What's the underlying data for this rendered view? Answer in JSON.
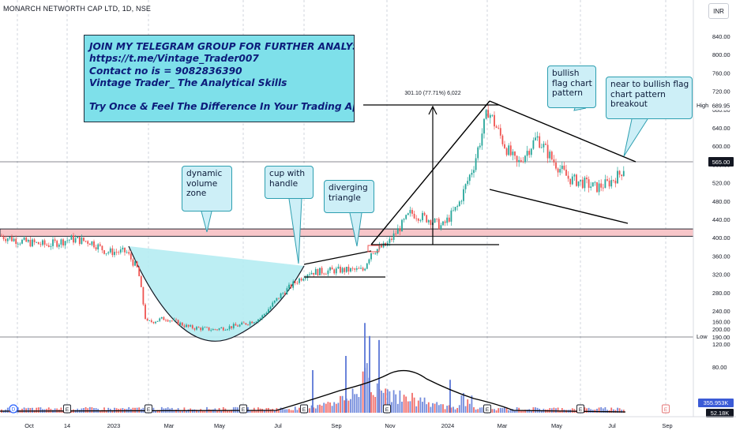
{
  "header": {
    "symbol": "MONARCH NETWORTH CAP LTD, 1D, NSE",
    "currency": "INR"
  },
  "promo": {
    "lines": [
      "JOIN MY TELEGRAM  GROUP FOR FURTHER ANALYSIS:-",
      "https://t.me/Vintage_Trader007",
      "Contact no is = 9082836390",
      "Vintage Trader_ The Analytical Skills",
      "",
      "Try Once & Feel The Difference In Your Trading Approach"
    ]
  },
  "annotations": {
    "dynamic_volume_zone": [
      "dynamic",
      "volume",
      "zone"
    ],
    "cup_with_handle": [
      "cup with",
      "handle"
    ],
    "diverging_triangle": [
      "diverging",
      "triangle"
    ],
    "bullish_flag": [
      "bullish",
      "flag chart",
      "pattern"
    ],
    "near_breakout": [
      "near to bullish flag",
      "chart pattern",
      "breakout"
    ],
    "measure_label": "301.10 (77.71%) 6,022"
  },
  "chart_data": {
    "type": "candlestick",
    "x_axis_labels": [
      "Oct",
      "14",
      "2023",
      "Mar",
      "May",
      "Jul",
      "Sep",
      "Nov",
      "2024",
      "Mar",
      "May",
      "Jul",
      "Sep"
    ],
    "price_axis_ticks": [
      840.0,
      800.0,
      760.0,
      720.0,
      680.0,
      640.0,
      600.0,
      560.0,
      520.0,
      480.0,
      440.0,
      400.0,
      360.0,
      320.0,
      280.0,
      240.0,
      200.0
    ],
    "volume_axis_ticks": [
      "160.00",
      "120.00",
      "80.00"
    ],
    "high_label": "High",
    "high_value": "689.95",
    "low_label": "Low",
    "low_value": "190.00",
    "last_price": "565.00",
    "volume_value_1": "355.953K",
    "volume_value_2": "52.18K",
    "price_path": [
      [
        "Oct 2022",
        405
      ],
      [
        "Nov 2022",
        385
      ],
      [
        "Dec 2022",
        395
      ],
      [
        "Jan 2023",
        375
      ],
      [
        "Feb 2023",
        345
      ],
      [
        "Mar 2023",
        215
      ],
      [
        "Apr 2023",
        205
      ],
      [
        "May 2023",
        200
      ],
      [
        "Jun 2023",
        225
      ],
      [
        "Jul 2023",
        300
      ],
      [
        "Aug 2023",
        325
      ],
      [
        "Sep 2023",
        330
      ],
      [
        "Oct 2023",
        380
      ],
      [
        "Nov 2023",
        470
      ],
      [
        "Dec 2023",
        440
      ],
      [
        "Jan 2024",
        560
      ],
      [
        "Feb 2024",
        680
      ],
      [
        "Mar 2024",
        610
      ],
      [
        "Apr 2024",
        560
      ],
      [
        "May 2024",
        520
      ],
      [
        "Jun 2024",
        500
      ],
      [
        "Jul 2024",
        565
      ]
    ],
    "resistance_zone": [
      404,
      420
    ],
    "measured_move": {
      "from": 388.85,
      "to": 689.95,
      "change": "301.10",
      "percent": "77.71%"
    },
    "colors": {
      "up": "#26a69a",
      "down": "#ef5350",
      "cup_fill": "#b5ecf2",
      "volume_up": "#5b77d6",
      "volume_down": "#ef5350",
      "volume_ma": "#000000",
      "zone": "#f7c6c9"
    }
  }
}
